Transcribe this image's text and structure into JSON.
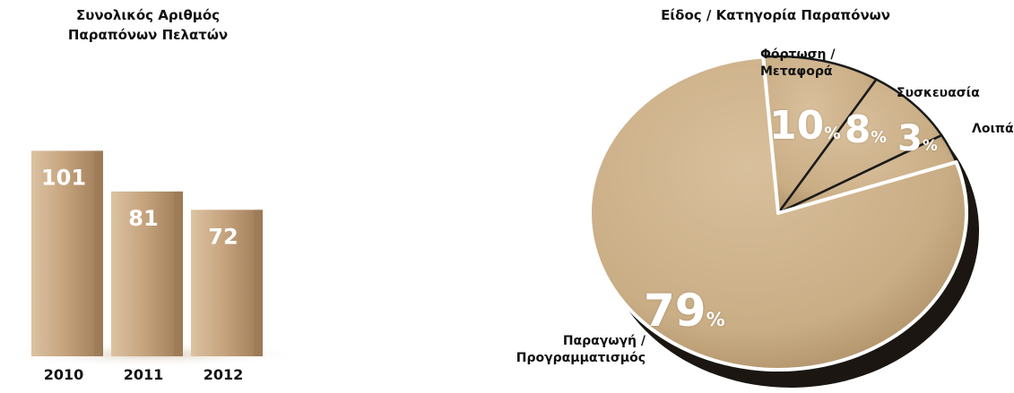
{
  "colors": {
    "bar_face": "#c6a47e",
    "bar_side": "#9c7a55",
    "bar_top": "#dcc3a3",
    "pie_face": "#c9ad85",
    "pie_shadow": "#1b1611",
    "divider": "#1a1a1a",
    "value_text": "#ffffff"
  },
  "chart_data": [
    {
      "type": "bar",
      "title_lines": [
        "Συνολικός Αριθμός",
        "Παραπόνων Πελατών"
      ],
      "categories": [
        "2010",
        "2011",
        "2012"
      ],
      "values": [
        101,
        81,
        72
      ],
      "ylim": [
        0,
        110
      ],
      "value_labels": [
        "101",
        "81",
        "72"
      ],
      "xlabel": "",
      "ylabel": "",
      "grid": false
    },
    {
      "type": "pie",
      "title": "Είδος / Κατηγορία Παραπόνων",
      "slices": [
        {
          "label_lines": [
            "Παραγωγή /",
            "Προγραμματισμός"
          ],
          "value": 79,
          "value_label": "79",
          "unit": "%"
        },
        {
          "label_lines": [
            "Φόρτωση /",
            "Μεταφορά"
          ],
          "value": 10,
          "value_label": "10",
          "unit": "%"
        },
        {
          "label_lines": [
            "Συσκευασία"
          ],
          "value": 8,
          "value_label": "8",
          "unit": "%"
        },
        {
          "label_lines": [
            "Λοιπά"
          ],
          "value": 3,
          "value_label": "3",
          "unit": "%"
        }
      ]
    }
  ]
}
